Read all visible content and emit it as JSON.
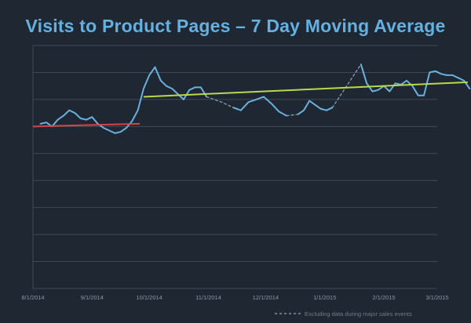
{
  "chart_data": {
    "type": "line",
    "title": "Visits to Product Pages – 7 Day Moving Average",
    "x_tick_labels": [
      "8/1/2014",
      "9/1/2014",
      "10/1/2014",
      "11/1/2014",
      "12/1/2014",
      "1/1/2015",
      "2/1/2015",
      "3/1/2015"
    ],
    "x_range": [
      "8/1/2014",
      "3/1/2015"
    ],
    "y_gridlines": 9,
    "y_tick_labels_shown": false,
    "grid": true,
    "legend": {
      "placement": "bottom-right",
      "dashed_label": "Excluding data during major sales events"
    },
    "series": [
      {
        "style": "solid",
        "points": [
          [
            "8/5/2014",
            0.61
          ],
          [
            "8/8/2014",
            0.615
          ],
          [
            "8/11/2014",
            0.6
          ],
          [
            "8/14/2014",
            0.625
          ],
          [
            "8/17/2014",
            0.64
          ],
          [
            "8/20/2014",
            0.66
          ],
          [
            "8/23/2014",
            0.65
          ],
          [
            "8/26/2014",
            0.63
          ],
          [
            "8/29/2014",
            0.625
          ],
          [
            "9/1/2014",
            0.635
          ],
          [
            "9/4/2014",
            0.61
          ],
          [
            "9/7/2014",
            0.595
          ],
          [
            "9/10/2014",
            0.585
          ],
          [
            "9/13/2014",
            0.575
          ],
          [
            "9/16/2014",
            0.58
          ],
          [
            "9/19/2014",
            0.595
          ],
          [
            "9/22/2014",
            0.62
          ],
          [
            "9/25/2014",
            0.66
          ],
          [
            "9/28/2014",
            0.74
          ],
          [
            "10/1/2014",
            0.79
          ],
          [
            "10/4/2014",
            0.82
          ],
          [
            "10/7/2014",
            0.77
          ],
          [
            "10/10/2014",
            0.75
          ],
          [
            "10/13/2014",
            0.74
          ],
          [
            "10/16/2014",
            0.72
          ],
          [
            "10/19/2014",
            0.7
          ],
          [
            "10/22/2014",
            0.735
          ],
          [
            "10/25/2014",
            0.745
          ],
          [
            "10/28/2014",
            0.745
          ],
          [
            "10/31/2014",
            0.71
          ]
        ]
      },
      {
        "style": "dashed",
        "points": [
          [
            "10/31/2014",
            0.71
          ],
          [
            "11/8/2014",
            0.69
          ],
          [
            "11/14/2014",
            0.67
          ]
        ]
      },
      {
        "style": "solid",
        "points": [
          [
            "11/14/2014",
            0.67
          ],
          [
            "11/18/2014",
            0.66
          ],
          [
            "11/22/2014",
            0.69
          ],
          [
            "11/26/2014",
            0.7
          ],
          [
            "11/30/2014",
            0.71
          ],
          [
            "12/4/2014",
            0.685
          ],
          [
            "12/8/2014",
            0.655
          ],
          [
            "12/12/2014",
            0.64
          ]
        ]
      },
      {
        "style": "dashed",
        "points": [
          [
            "12/12/2014",
            0.64
          ],
          [
            "12/18/2014",
            0.645
          ]
        ]
      },
      {
        "style": "solid",
        "points": [
          [
            "12/18/2014",
            0.645
          ],
          [
            "12/21/2014",
            0.66
          ],
          [
            "12/24/2014",
            0.695
          ],
          [
            "12/27/2014",
            0.68
          ],
          [
            "12/30/2014",
            0.665
          ],
          [
            "1/2/2015",
            0.66
          ],
          [
            "1/5/2015",
            0.67
          ]
        ]
      },
      {
        "style": "dashed",
        "points": [
          [
            "1/5/2015",
            0.67
          ],
          [
            "1/20/2015",
            0.83
          ]
        ]
      },
      {
        "style": "solid",
        "points": [
          [
            "1/20/2015",
            0.83
          ],
          [
            "1/23/2015",
            0.76
          ],
          [
            "1/26/2015",
            0.73
          ],
          [
            "1/29/2015",
            0.735
          ],
          [
            "2/1/2015",
            0.75
          ],
          [
            "2/4/2015",
            0.73
          ],
          [
            "2/7/2015",
            0.76
          ],
          [
            "2/10/2015",
            0.755
          ],
          [
            "2/13/2015",
            0.77
          ],
          [
            "2/16/2015",
            0.75
          ],
          [
            "2/19/2015",
            0.715
          ],
          [
            "2/22/2015",
            0.715
          ],
          [
            "2/25/2015",
            0.8
          ],
          [
            "2/28/2015",
            0.805
          ],
          [
            "3/3/2015",
            0.795
          ],
          [
            "3/6/2015",
            0.79
          ],
          [
            "3/9/2015",
            0.79
          ],
          [
            "3/12/2015",
            0.78
          ],
          [
            "3/15/2015",
            0.77
          ],
          [
            "3/18/2015",
            0.74
          ]
        ]
      }
    ],
    "trendlines": [
      {
        "color": "#d64545",
        "from": [
          "8/1/2014",
          0.6
        ],
        "to": [
          "9/26/2014",
          0.61
        ]
      },
      {
        "color": "#b9d94a",
        "from": [
          "9/28/2014",
          0.71
        ],
        "to": [
          "3/17/2015",
          0.764
        ]
      }
    ],
    "y_domain": [
      0,
      0.9
    ],
    "colors": {
      "series": "#6ab0dd",
      "title": "#65b0de",
      "grid": "#3e4a5a",
      "tick_text": "#8a96a6"
    }
  }
}
